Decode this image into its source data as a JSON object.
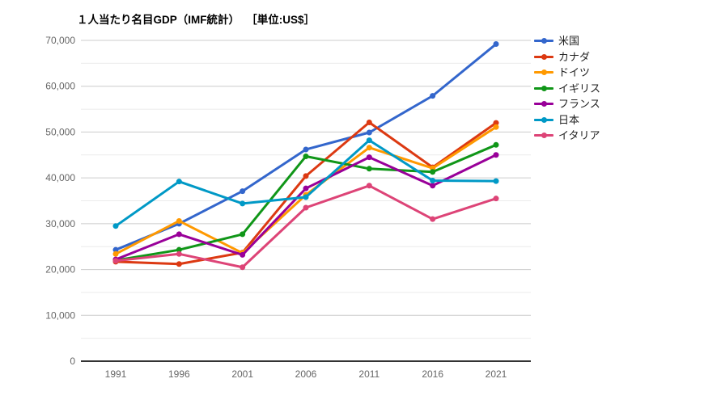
{
  "chart_data": {
    "type": "line",
    "title": "１人当たり名目GDP（IMF統計）",
    "unit_label": "［単位:US$］",
    "categories": [
      "1991",
      "1996",
      "2001",
      "2006",
      "2011",
      "2016",
      "2021"
    ],
    "series": [
      {
        "name": "米国",
        "color": "#3366CC",
        "values": [
          24300,
          30000,
          37100,
          46200,
          49900,
          57900,
          69200
        ]
      },
      {
        "name": "カナダ",
        "color": "#DC3912",
        "values": [
          21700,
          21200,
          23700,
          40400,
          52100,
          42300,
          52000
        ]
      },
      {
        "name": "ドイツ",
        "color": "#FF9900",
        "values": [
          23400,
          30600,
          23600,
          36300,
          46600,
          42100,
          51100
        ]
      },
      {
        "name": "イギリス",
        "color": "#109618",
        "values": [
          22000,
          24300,
          27700,
          44700,
          42000,
          41300,
          47200
        ]
      },
      {
        "name": "フランス",
        "color": "#990099",
        "values": [
          22200,
          27700,
          23200,
          37700,
          44500,
          38300,
          45000
        ]
      },
      {
        "name": "日本",
        "color": "#0099C6",
        "values": [
          29500,
          39200,
          34400,
          35800,
          48200,
          39400,
          39300
        ]
      },
      {
        "name": "イタリア",
        "color": "#DD4477",
        "values": [
          21900,
          23400,
          20500,
          33500,
          38300,
          31000,
          35500
        ]
      }
    ],
    "xlabel": "",
    "ylabel": "",
    "ylim": [
      0,
      70000
    ],
    "y_major_step": 10000,
    "y_minor_step": 5000,
    "y_tick_labels": [
      "0",
      "10,000",
      "20,000",
      "30,000",
      "40,000",
      "50,000",
      "60,000",
      "70,000"
    ],
    "grid": true,
    "legend_position": "right"
  },
  "colors": {
    "background": "#ffffff",
    "grid_major": "#cccccc",
    "grid_minor": "#ebebeb",
    "axis_baseline": "#333333",
    "tick_label": "#666666",
    "legend_text": "#222222",
    "title_text": "#000000"
  }
}
